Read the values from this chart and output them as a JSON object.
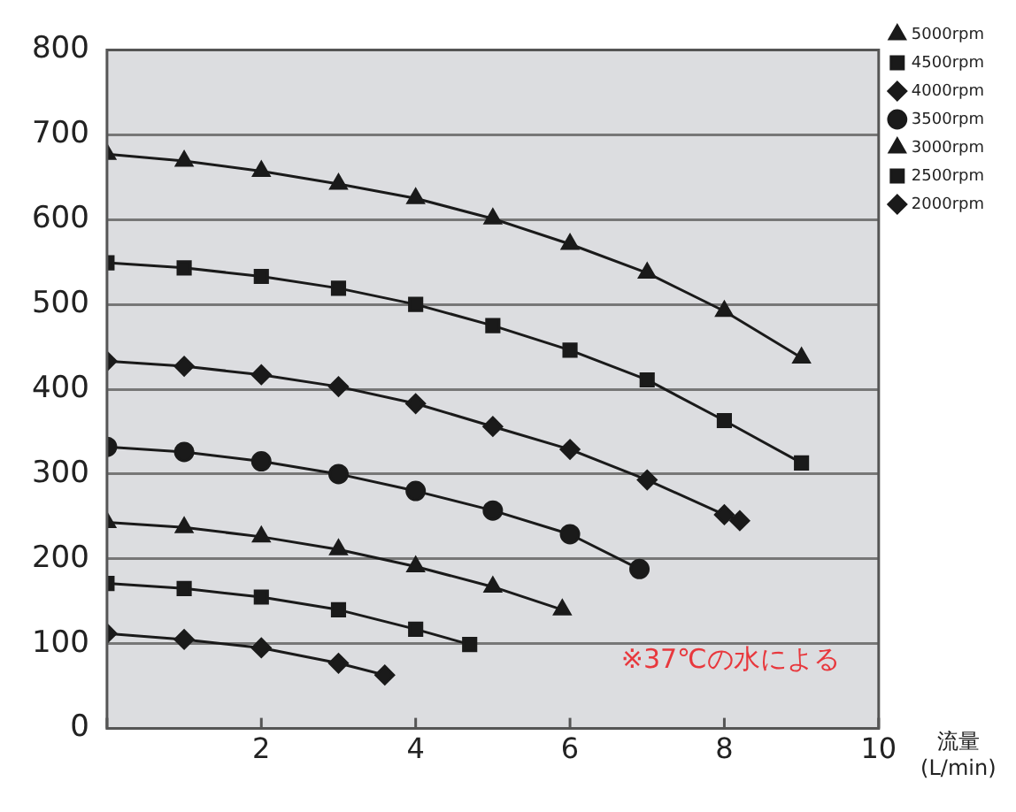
{
  "chart_data": {
    "type": "line",
    "xlabel": "流量\n(L/min)",
    "xlim": [
      0,
      10
    ],
    "xticks": [
      {
        "value": 0,
        "label": null
      },
      2,
      4,
      6,
      8,
      10
    ],
    "ylim": [
      0,
      800
    ],
    "yticks": [
      0,
      100,
      200,
      300,
      400,
      500,
      600,
      700,
      800
    ],
    "grid": "y",
    "legend": "top right",
    "line_style": "solid",
    "annotations": [
      "※37℃の水による"
    ],
    "series": [
      {
        "name": "5000rpm",
        "color": "#1a1a1a",
        "marker": "triangle",
        "x": [
          0,
          1,
          2,
          3,
          4,
          5,
          6,
          7,
          8,
          9
        ],
        "values": [
          677,
          669,
          657,
          642,
          625,
          601,
          571,
          537,
          492,
          437
        ]
      },
      {
        "name": "4500rpm",
        "color": "#1a1a1a",
        "marker": "square",
        "x": [
          0,
          1,
          2,
          3,
          4,
          5,
          6,
          7,
          8,
          9
        ],
        "values": [
          549,
          543,
          533,
          519,
          500,
          475,
          446,
          411,
          363,
          313
        ]
      },
      {
        "name": "4000rpm",
        "color": "#1a1a1a",
        "marker": "diamond",
        "x": [
          0,
          1,
          2,
          3,
          4,
          5,
          6,
          7,
          8,
          8.2
        ],
        "values": [
          433,
          427,
          417,
          403,
          383,
          356,
          329,
          293,
          252,
          245
        ]
      },
      {
        "name": "3500rpm",
        "color": "#1a1a1a",
        "marker": "circle",
        "x": [
          0,
          1,
          2,
          3,
          4,
          5,
          6,
          6.9
        ],
        "values": [
          332,
          326,
          315,
          300,
          280,
          257,
          229,
          188
        ]
      },
      {
        "name": "3000rpm",
        "color": "#1a1a1a",
        "marker": "triangle",
        "x": [
          0,
          1,
          2,
          3,
          4,
          5,
          5.9
        ],
        "values": [
          243,
          237,
          226,
          211,
          191,
          167,
          140
        ]
      },
      {
        "name": "2500rpm",
        "color": "#1a1a1a",
        "marker": "square",
        "x": [
          0,
          1,
          2,
          3,
          4,
          4.7
        ],
        "values": [
          171,
          165,
          155,
          140,
          117,
          99
        ]
      },
      {
        "name": "2000rpm",
        "color": "#1a1a1a",
        "marker": "diamond",
        "x": [
          0,
          1,
          2,
          3,
          3.6
        ],
        "values": [
          112,
          105,
          95,
          77,
          63
        ]
      }
    ]
  }
}
